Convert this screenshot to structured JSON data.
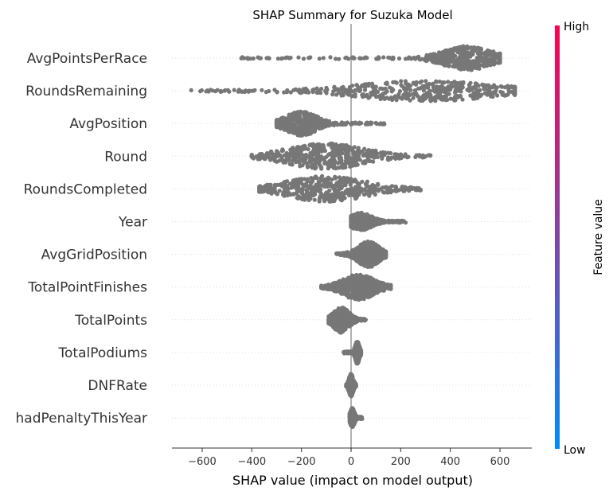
{
  "chart_data": {
    "type": "scatter",
    "subtype": "shap-beeswarm",
    "title": "SHAP Summary for Suzuka Model",
    "xlabel": "SHAP value (impact on model output)",
    "xlim": [
      -720,
      720
    ],
    "xticks": [
      -600,
      -400,
      -200,
      0,
      200,
      400,
      600
    ],
    "xtick_labels": [
      "−600",
      "−400",
      "−200",
      "0",
      "200",
      "400",
      "600"
    ],
    "point_color": "#777777",
    "zero_line_color": "#999999",
    "grid": "dotted horizontal row guides",
    "features": [
      {
        "name": "AvgPointsPerRace",
        "min": -450,
        "max": 600,
        "bulk_center": 470,
        "bulk_spread": 90,
        "max_height": 14
      },
      {
        "name": "RoundsRemaining",
        "min": -650,
        "max": 660,
        "bulk_center": 300,
        "bulk_spread": 250,
        "max_height": 12
      },
      {
        "name": "AvgPosition",
        "min": -300,
        "max": 150,
        "bulk_center": -200,
        "bulk_spread": 60,
        "max_height": 14
      },
      {
        "name": "Round",
        "min": -400,
        "max": 320,
        "bulk_center": -100,
        "bulk_spread": 150,
        "max_height": 15
      },
      {
        "name": "RoundsCompleted",
        "min": -370,
        "max": 280,
        "bulk_center": -100,
        "bulk_spread": 150,
        "max_height": 15
      },
      {
        "name": "Year",
        "min": 0,
        "max": 220,
        "bulk_center": 40,
        "bulk_spread": 40,
        "max_height": 10
      },
      {
        "name": "AvgGridPosition",
        "min": -60,
        "max": 140,
        "bulk_center": 70,
        "bulk_spread": 40,
        "max_height": 15
      },
      {
        "name": "TotalPointFinishes",
        "min": -120,
        "max": 160,
        "bulk_center": 30,
        "bulk_spread": 60,
        "max_height": 15
      },
      {
        "name": "TotalPoints",
        "min": -90,
        "max": 60,
        "bulk_center": -40,
        "bulk_spread": 30,
        "max_height": 15
      },
      {
        "name": "TotalPodiums",
        "min": -30,
        "max": 40,
        "bulk_center": 25,
        "bulk_spread": 8,
        "max_height": 13
      },
      {
        "name": "DNFRate",
        "min": -20,
        "max": 20,
        "bulk_center": 0,
        "bulk_spread": 8,
        "max_height": 13
      },
      {
        "name": "hadPenaltyThisYear",
        "min": -5,
        "max": 45,
        "bulk_center": 5,
        "bulk_spread": 8,
        "max_height": 11
      }
    ],
    "colorbar": {
      "label": "Feature value",
      "high_label": "High",
      "low_label": "Low",
      "high_color": "#ff0051",
      "low_color": "#008bfb"
    }
  }
}
